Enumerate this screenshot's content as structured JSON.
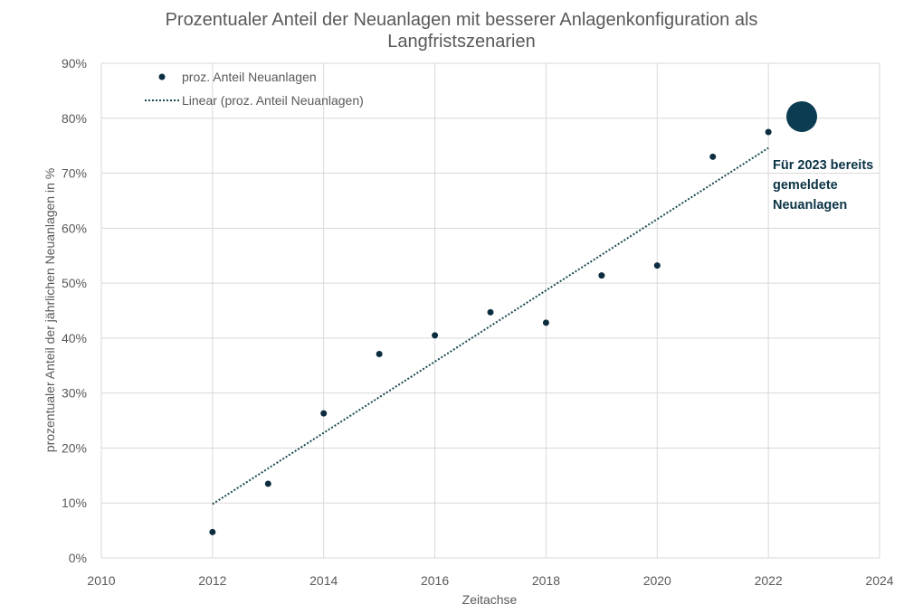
{
  "chart_data": {
    "type": "scatter",
    "title_lines": [
      "Prozentualer Anteil der Neuanlagen mit besserer Anlagenkonfiguration als",
      "Langfristszenarien"
    ],
    "xlabel": "Zeitachse",
    "ylabel": "prozentualer Anteil der jährlichen Neuanlagen in %",
    "xlim": [
      2010,
      2024
    ],
    "ylim": [
      0,
      90
    ],
    "x_ticks": [
      "2010",
      "2012",
      "2014",
      "2016",
      "2018",
      "2020",
      "2022",
      "2024"
    ],
    "y_ticks": [
      "0%",
      "10%",
      "20%",
      "30%",
      "40%",
      "50%",
      "60%",
      "70%",
      "80%",
      "90%"
    ],
    "grid": true,
    "legend_position": "top-left",
    "series": [
      {
        "name": "proz. Anteil Neuanlagen",
        "x": [
          2012,
          2013,
          2014,
          2015,
          2016,
          2017,
          2018,
          2019,
          2020,
          2021,
          2022
        ],
        "y": [
          4.7,
          13.5,
          26.3,
          37.1,
          40.5,
          44.7,
          42.8,
          51.4,
          53.2,
          73.0,
          77.5
        ]
      }
    ],
    "trendline": {
      "name": "Linear (proz. Anteil Neuanlagen)",
      "x": [
        2012,
        2022
      ],
      "y": [
        9.8,
        74.6
      ]
    },
    "highlight": {
      "x": 2022.6,
      "y": 80.3,
      "label_lines": [
        "Für 2023 bereits",
        "gemeldete",
        "Neuanlagen"
      ]
    },
    "colors": {
      "point": "#0b2d3f",
      "highlight": "#0b3c52",
      "trendline": "#1a4a50",
      "text": "#595959",
      "grid": "#d9d9d9"
    }
  }
}
